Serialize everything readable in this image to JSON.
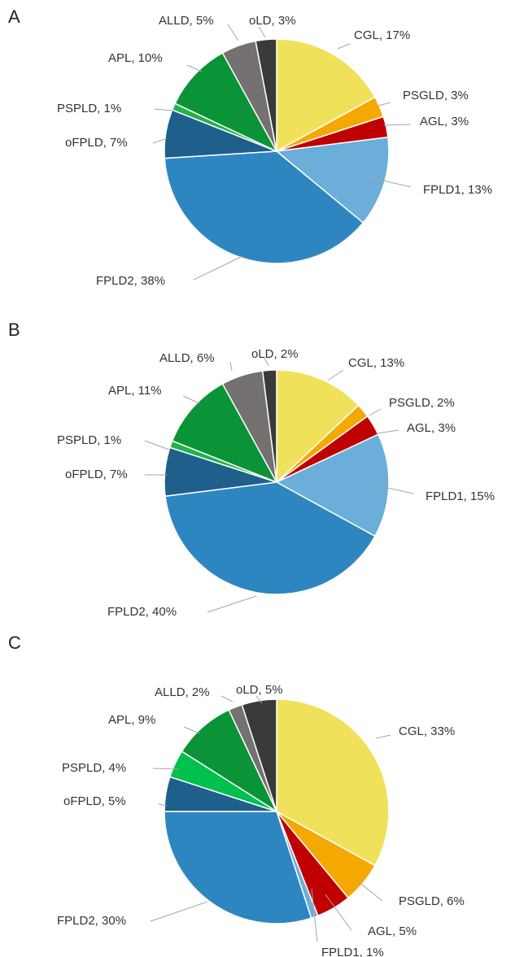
{
  "chart_data": [
    {
      "type": "pie",
      "panel_label": "A",
      "slices": [
        {
          "name": "CGL",
          "value": 17,
          "label": "CGL, 17%",
          "color": "#f0e15a"
        },
        {
          "name": "PSGLD",
          "value": 3,
          "label": "PSGLD, 3%",
          "color": "#f5a800"
        },
        {
          "name": "AGL",
          "value": 3,
          "label": "AGL, 3%",
          "color": "#c00000"
        },
        {
          "name": "FPLD1",
          "value": 13,
          "label": "FPLD1, 13%",
          "color": "#6aaed9"
        },
        {
          "name": "FPLD2",
          "value": 38,
          "label": "FPLD2, 38%",
          "color": "#2e86c1"
        },
        {
          "name": "oFPLD",
          "value": 7,
          "label": "oFPLD, 7%",
          "color": "#1f5f8b"
        },
        {
          "name": "PSPLD",
          "value": 1,
          "label": "PSPLD, 1%",
          "color": "#22b14c"
        },
        {
          "name": "APL",
          "value": 10,
          "label": "APL, 10%",
          "color": "#0a9437"
        },
        {
          "name": "ALLD",
          "value": 5,
          "label": "ALLD, 5%",
          "color": "#767171"
        },
        {
          "name": "oLD",
          "value": 3,
          "label": "oLD, 3%",
          "color": "#3a3a3a"
        }
      ]
    },
    {
      "type": "pie",
      "panel_label": "B",
      "slices": [
        {
          "name": "CGL",
          "value": 13,
          "label": "CGL, 13%",
          "color": "#f0e15a"
        },
        {
          "name": "PSGLD",
          "value": 2,
          "label": "PSGLD, 2%",
          "color": "#f5a800"
        },
        {
          "name": "AGL",
          "value": 3,
          "label": "AGL, 3%",
          "color": "#c00000"
        },
        {
          "name": "FPLD1",
          "value": 15,
          "label": "FPLD1, 15%",
          "color": "#6aaed9"
        },
        {
          "name": "FPLD2",
          "value": 40,
          "label": "FPLD2, 40%",
          "color": "#2e86c1"
        },
        {
          "name": "oFPLD",
          "value": 7,
          "label": "oFPLD, 7%",
          "color": "#1f5f8b"
        },
        {
          "name": "PSPLD",
          "value": 1,
          "label": "PSPLD, 1%",
          "color": "#22b14c"
        },
        {
          "name": "APL",
          "value": 11,
          "label": "APL, 11%",
          "color": "#0a9437"
        },
        {
          "name": "ALLD",
          "value": 6,
          "label": "ALLD, 6%",
          "color": "#767171"
        },
        {
          "name": "oLD",
          "value": 2,
          "label": "oLD, 2%",
          "color": "#3a3a3a"
        }
      ]
    },
    {
      "type": "pie",
      "panel_label": "C",
      "slices": [
        {
          "name": "CGL",
          "value": 33,
          "label": "CGL, 33%",
          "color": "#f0e15a"
        },
        {
          "name": "PSGLD",
          "value": 6,
          "label": "PSGLD, 6%",
          "color": "#f5a800"
        },
        {
          "name": "AGL",
          "value": 5,
          "label": "AGL, 5%",
          "color": "#c00000"
        },
        {
          "name": "FPLD1",
          "value": 1,
          "label": "FPLD1, 1%",
          "color": "#6aaed9"
        },
        {
          "name": "FPLD2",
          "value": 30,
          "label": "FPLD2, 30%",
          "color": "#2e86c1"
        },
        {
          "name": "oFPLD",
          "value": 5,
          "label": "oFPLD, 5%",
          "color": "#1f5f8b"
        },
        {
          "name": "PSPLD",
          "value": 4,
          "label": "PSPLD, 4%",
          "color": "#00c050"
        },
        {
          "name": "APL",
          "value": 9,
          "label": "APL, 9%",
          "color": "#0a9437"
        },
        {
          "name": "ALLD",
          "value": 2,
          "label": "ALLD, 2%",
          "color": "#767171"
        },
        {
          "name": "oLD",
          "value": 5,
          "label": "oLD, 5%",
          "color": "#3a3a3a"
        }
      ]
    }
  ]
}
